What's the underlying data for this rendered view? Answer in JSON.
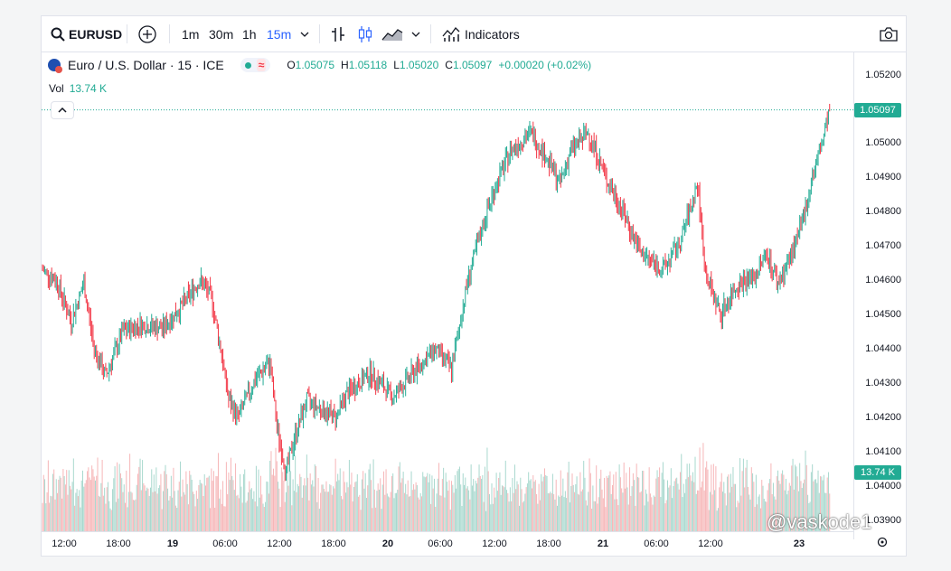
{
  "toolbar": {
    "symbol": "EURUSD",
    "intervals": [
      "1m",
      "30m",
      "1h",
      "15m"
    ],
    "indicators_label": "Indicators"
  },
  "legend": {
    "instrument": "Euro / U.S. Dollar · 15 · ICE",
    "open_label": "O",
    "open": "1.05075",
    "high_label": "H",
    "high": "1.05118",
    "low_label": "L",
    "low": "1.05020",
    "close_label": "C",
    "close": "1.05097",
    "change": "+0.00020 (+0.02%)",
    "vol_label": "Vol",
    "vol_value": "13.74 K"
  },
  "price_axis": {
    "ticks": [
      "1.05200",
      "1.05000",
      "1.04900",
      "1.04800",
      "1.04700",
      "1.04600",
      "1.04500",
      "1.04400",
      "1.04300",
      "1.04200",
      "1.04100",
      "1.04000",
      "1.03900"
    ],
    "last_price": "1.05097",
    "volume_label": "13.74 K"
  },
  "time_axis": {
    "labels": [
      "12:00",
      "18:00",
      "19",
      "06:00",
      "12:00",
      "18:00",
      "20",
      "06:00",
      "12:00",
      "18:00",
      "21",
      "06:00",
      "12:00",
      "23"
    ]
  },
  "watermark": "@vaskode1",
  "colors": {
    "up": "#22ab94",
    "down": "#f23645",
    "up_vol": "#a8d8ce",
    "down_vol": "#f6b6b8"
  },
  "icons": [
    "search-icon",
    "add-symbol-icon",
    "chevron-down-icon",
    "bar-chart-icon",
    "candle-chart-icon",
    "area-chart-icon",
    "indicators-icon",
    "camera-icon",
    "chevron-up-icon",
    "settings-icon"
  ],
  "chart_data": {
    "type": "candlestick",
    "symbol": "EURUSD",
    "interval": "15",
    "ylim": [
      1.0388,
      1.0525
    ],
    "x_start_label": "12:00",
    "close_path": [
      [
        0,
        1.0463
      ],
      [
        12,
        1.046
      ],
      [
        25,
        1.0448
      ],
      [
        36,
        1.0459
      ],
      [
        45,
        1.044
      ],
      [
        55,
        1.0432
      ],
      [
        70,
        1.0445
      ],
      [
        85,
        1.0447
      ],
      [
        105,
        1.0446
      ],
      [
        120,
        1.0452
      ],
      [
        137,
        1.046
      ],
      [
        147,
        1.0455
      ],
      [
        155,
        1.044
      ],
      [
        162,
        1.0425
      ],
      [
        170,
        1.042
      ],
      [
        185,
        1.0431
      ],
      [
        198,
        1.0436
      ],
      [
        204,
        1.0417
      ],
      [
        212,
        1.0404
      ],
      [
        220,
        1.0415
      ],
      [
        230,
        1.0425
      ],
      [
        240,
        1.0423
      ],
      [
        255,
        1.042
      ],
      [
        265,
        1.0427
      ],
      [
        285,
        1.0433
      ],
      [
        305,
        1.0426
      ],
      [
        325,
        1.0434
      ],
      [
        342,
        1.044
      ],
      [
        356,
        1.0434
      ],
      [
        370,
        1.046
      ],
      [
        385,
        1.0478
      ],
      [
        395,
        1.0488
      ],
      [
        408,
        1.0498
      ],
      [
        425,
        1.0503
      ],
      [
        438,
        1.0496
      ],
      [
        450,
        1.0488
      ],
      [
        460,
        1.0498
      ],
      [
        475,
        1.0503
      ],
      [
        490,
        1.049
      ],
      [
        505,
        1.048
      ],
      [
        520,
        1.0468
      ],
      [
        540,
        1.0463
      ],
      [
        555,
        1.0471
      ],
      [
        570,
        1.0488
      ],
      [
        577,
        1.0462
      ],
      [
        590,
        1.045
      ],
      [
        605,
        1.0459
      ],
      [
        620,
        1.0461
      ],
      [
        630,
        1.0468
      ],
      [
        640,
        1.0459
      ],
      [
        650,
        1.0466
      ],
      [
        660,
        1.0475
      ],
      [
        670,
        1.049
      ],
      [
        680,
        1.0502
      ],
      [
        685,
        1.051
      ]
    ],
    "volume_range": [
      0,
      13740
    ]
  }
}
